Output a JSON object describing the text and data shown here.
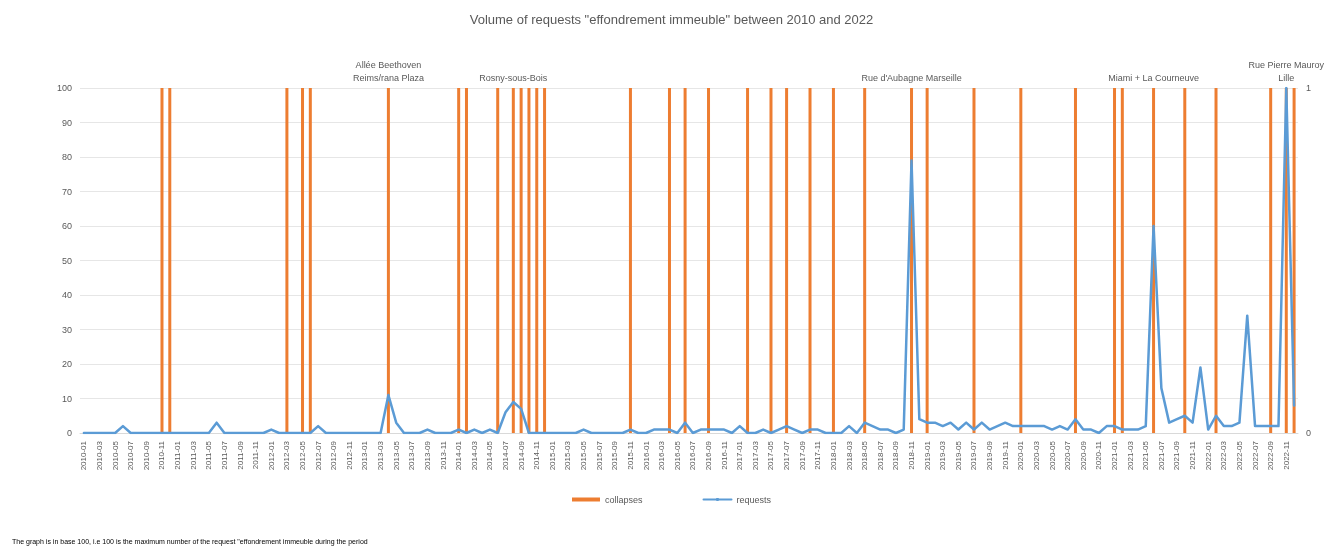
{
  "chart_data": {
    "type": "line",
    "title": "Volume of requests \"effondrement immeuble\" between 2010 and 2022",
    "categories": [
      "2010-01",
      null,
      "2010-03",
      null,
      "2010-05",
      null,
      "2010-07",
      null,
      "2010-09",
      null,
      "2010-11",
      null,
      "2011-01",
      null,
      "2011-03",
      null,
      "2011-05",
      null,
      "2011-07",
      null,
      "2011-09",
      null,
      "2011-11",
      null,
      "2012-01",
      null,
      "2012-03",
      null,
      "2012-05",
      null,
      "2012-07",
      null,
      "2012-09",
      null,
      "2012-11",
      null,
      "2013-01",
      null,
      "2013-03",
      null,
      "2013-05",
      null,
      "2013-07",
      null,
      "2013-09",
      null,
      "2013-11",
      null,
      "2014-01",
      null,
      "2014-03",
      null,
      "2014-05",
      null,
      "2014-07",
      null,
      "2014-09",
      null,
      "2014-11",
      null,
      "2015-01",
      null,
      "2015-03",
      null,
      "2015-05",
      null,
      "2015-07",
      null,
      "2015-09",
      null,
      "2015-11",
      null,
      "2016-01",
      null,
      "2016-03",
      null,
      "2016-05",
      null,
      "2016-07",
      null,
      "2016-09",
      null,
      "2016-11",
      null,
      "2017-01",
      null,
      "2017-03",
      null,
      "2017-05",
      null,
      "2017-07",
      null,
      "2017-09",
      null,
      "2017-11",
      null,
      "2018-01",
      null,
      "2018-03",
      null,
      "2018-05",
      null,
      "2018-07",
      null,
      "2018-09",
      null,
      "2018-11",
      null,
      "2019-01",
      null,
      "2019-03",
      null,
      "2019-05",
      null,
      "2019-07",
      null,
      "2019-09",
      null,
      "2019-11",
      null,
      "2020-01",
      null,
      "2020-03",
      null,
      "2020-05",
      null,
      "2020-07",
      null,
      "2020-09",
      null,
      "2020-11",
      null,
      "2021-01",
      null,
      "2021-03",
      null,
      "2021-05",
      null,
      "2021-07",
      null,
      "2021-09",
      null,
      "2021-11",
      null,
      "2022-01",
      null,
      "2022-03",
      null,
      "2022-05",
      null,
      "2022-07",
      null,
      "2022-09",
      null,
      "2022-11",
      null
    ],
    "series": [
      {
        "name": "collapses",
        "type": "bar",
        "axis": "y2",
        "color": "#ed7d31",
        "values": [
          null,
          null,
          null,
          null,
          null,
          null,
          null,
          null,
          null,
          null,
          1,
          1,
          null,
          null,
          null,
          null,
          null,
          null,
          null,
          null,
          null,
          null,
          null,
          null,
          null,
          null,
          1,
          null,
          1,
          1,
          null,
          null,
          null,
          null,
          null,
          null,
          null,
          null,
          null,
          1,
          null,
          null,
          null,
          null,
          null,
          null,
          null,
          null,
          1,
          1,
          null,
          null,
          null,
          1,
          null,
          1,
          1,
          1,
          1,
          1,
          null,
          null,
          null,
          null,
          null,
          null,
          null,
          null,
          null,
          null,
          1,
          null,
          null,
          null,
          null,
          1,
          null,
          1,
          null,
          null,
          1,
          null,
          null,
          null,
          null,
          1,
          null,
          null,
          1,
          null,
          1,
          null,
          null,
          1,
          null,
          null,
          1,
          null,
          null,
          null,
          1,
          null,
          null,
          null,
          null,
          null,
          1,
          null,
          1,
          null,
          null,
          null,
          null,
          null,
          1,
          null,
          null,
          null,
          null,
          null,
          1,
          null,
          null,
          null,
          null,
          null,
          null,
          1,
          null,
          null,
          null,
          null,
          1,
          1,
          null,
          null,
          null,
          1,
          null,
          null,
          null,
          1,
          null,
          null,
          null,
          1,
          null,
          null,
          null,
          null,
          null,
          null,
          1,
          null,
          1,
          1
        ],
        "value_labels": [
          null,
          null,
          null,
          null,
          null,
          null,
          null,
          null,
          null,
          null,
          null,
          null,
          null,
          null,
          null,
          null,
          null,
          null,
          null,
          null,
          null,
          null,
          null,
          null,
          null,
          null,
          null,
          null,
          null,
          null,
          null,
          null,
          null,
          null,
          null,
          null,
          null,
          null,
          null,
          "Allée Beethoven\nReims/rana Plaza",
          null,
          null,
          null,
          null,
          null,
          null,
          null,
          null,
          null,
          null,
          null,
          null,
          null,
          null,
          null,
          "Rosny-sous-Bois",
          null,
          null,
          null,
          null,
          null,
          null,
          null,
          null,
          null,
          null,
          null,
          null,
          null,
          null,
          null,
          null,
          null,
          null,
          null,
          null,
          null,
          null,
          null,
          null,
          null,
          null,
          null,
          null,
          null,
          null,
          null,
          null,
          null,
          null,
          null,
          null,
          null,
          null,
          null,
          null,
          null,
          null,
          null,
          null,
          null,
          null,
          null,
          null,
          null,
          null,
          "Rue d'Aubagne Marseille",
          null,
          null,
          null,
          null,
          null,
          null,
          null,
          null,
          null,
          null,
          null,
          null,
          null,
          null,
          null,
          null,
          null,
          null,
          null,
          null,
          null,
          null,
          null,
          null,
          null,
          null,
          null,
          null,
          null,
          null,
          "Miami + La Courneuve",
          null,
          null,
          null,
          null,
          null,
          null,
          null,
          null,
          null,
          null,
          null,
          null,
          null,
          null,
          null,
          null,
          "Rue Pierre Mauroy\nLille",
          null
        ]
      },
      {
        "name": "requests",
        "color": "#5b9bd5",
        "values": [
          0,
          0,
          0,
          0,
          0,
          2,
          0,
          0,
          0,
          0,
          0,
          0,
          0,
          0,
          0,
          0,
          0,
          3,
          0,
          0,
          0,
          0,
          0,
          0,
          1,
          0,
          0,
          0,
          0,
          0,
          2,
          0,
          0,
          0,
          0,
          0,
          0,
          0,
          0,
          11,
          3,
          0,
          0,
          0,
          1,
          0,
          0,
          0,
          1,
          0,
          1,
          0,
          1,
          0,
          6,
          9,
          7,
          0,
          0,
          0,
          0,
          0,
          0,
          0,
          1,
          0,
          0,
          0,
          0,
          0,
          1,
          0,
          0,
          1,
          1,
          1,
          0,
          3,
          0,
          1,
          1,
          1,
          1,
          0,
          2,
          0,
          0,
          1,
          0,
          1,
          2,
          1,
          0,
          1,
          1,
          0,
          0,
          0,
          2,
          0,
          3,
          2,
          1,
          1,
          0,
          1,
          79,
          4,
          3,
          3,
          2,
          3,
          1,
          3,
          1,
          3,
          1,
          2,
          3,
          2,
          2,
          2,
          2,
          2,
          1,
          2,
          1,
          4,
          1,
          1,
          0,
          2,
          2,
          1,
          1,
          1,
          2,
          60,
          13,
          3,
          4,
          5,
          3,
          19,
          1,
          5,
          2,
          2,
          3,
          34,
          2,
          2,
          2,
          2,
          100,
          8
        ]
      }
    ],
    "ylim": [
      0,
      100
    ],
    "yticks": [
      0,
      10,
      20,
      30,
      40,
      50,
      60,
      70,
      80,
      90,
      100
    ],
    "y2lim": [
      0,
      1
    ],
    "y2ticks": [
      0,
      1
    ],
    "grid": "y",
    "legend": "bottom",
    "marker": "none",
    "line_style": "solid",
    "annotations": [
      "The graph is in base 100, i.e 100 is the maximum number of the request \"effondrement immeuble during the period"
    ]
  }
}
